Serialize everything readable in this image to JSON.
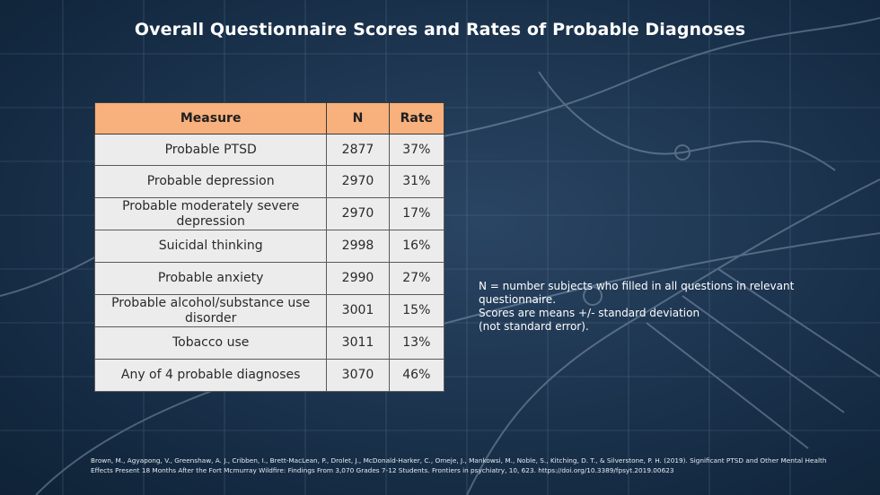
{
  "slide": {
    "title": "Overall Questionnaire Scores and Rates of Probable Diagnoses"
  },
  "table": {
    "headers": {
      "measure": "Measure",
      "n": "N",
      "rate": "Rate"
    },
    "rows": [
      {
        "measure": "Probable PTSD",
        "n": "2877",
        "rate": "37%"
      },
      {
        "measure": "Probable depression",
        "n": "2970",
        "rate": "31%"
      },
      {
        "measure": "Probable moderately severe depression",
        "n": "2970",
        "rate": "17%"
      },
      {
        "measure": "Suicidal thinking",
        "n": "2998",
        "rate": "16%"
      },
      {
        "measure": "Probable anxiety",
        "n": "2990",
        "rate": "27%"
      },
      {
        "measure": "Probable alcohol/substance use disorder",
        "n": "3001",
        "rate": "15%"
      },
      {
        "measure": "Tobacco use",
        "n": "3011",
        "rate": "13%"
      },
      {
        "measure": "Any of 4 probable diagnoses",
        "n": "3070",
        "rate": "46%"
      }
    ]
  },
  "note": {
    "lines": [
      "N = number subjects who filled in all questions in relevant questionnaire.",
      "Scores are means +/- standard deviation",
      "(not standard error)."
    ]
  },
  "citation": {
    "text": "Brown, M., Agyapong, V., Greenshaw, A. J., Cribben, I., Brett-MacLean, P., Drolet, J., McDonald-Harker, C., Omeje, J., Mankowsi, M., Noble, S., Kitching, D. T., & Silverstone, P. H. (2019). Significant PTSD and Other Mental Health Effects Present 18 Months After the Fort Mcmurray Wildfire: Findings From 3,070 Grades 7-12 Students. Frontiers in psychiatry, 10, 623. https://doi.org/10.3389/fpsyt.2019.00623"
  },
  "colors": {
    "header_fill": "#f8b07c",
    "cell_fill": "#ececec",
    "background": "#1d3550"
  }
}
